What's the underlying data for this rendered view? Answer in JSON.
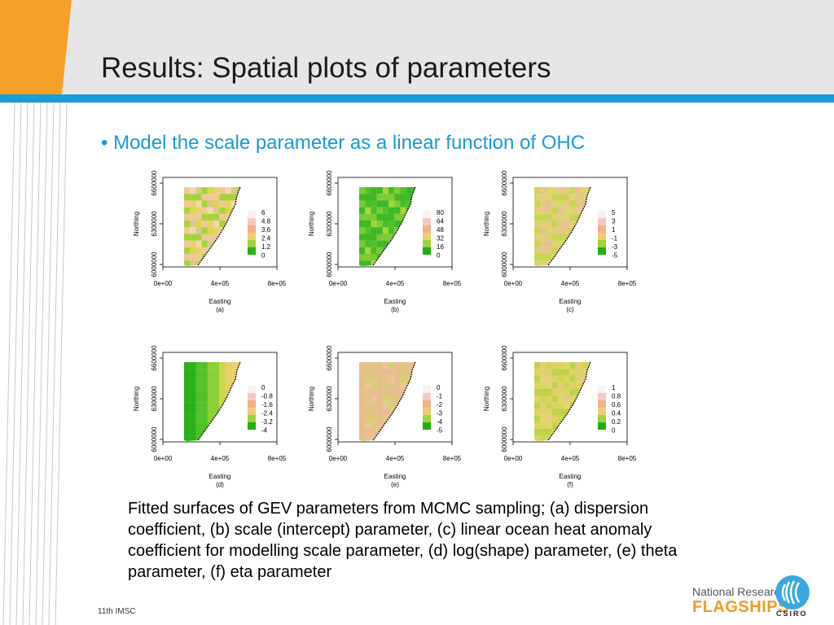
{
  "slide": {
    "title": "Results: Spatial plots of parameters",
    "bullet": "• Model the scale parameter as a linear function of OHC",
    "caption": "Fitted surfaces of GEV parameters from MCMC sampling; (a) dispersion coefficient, (b) scale (intercept) parameter, (c) linear ocean heat anomaly coefficient for modelling scale parameter, (d) log(shape) parameter, (e) theta parameter, (f) eta parameter",
    "footer_note": "11th IMSC",
    "logo": {
      "line1": "National Research",
      "line2": "FLAGSHIPS",
      "csiro": "CSIRO"
    }
  },
  "colors": {
    "accent": "#1a9ad6",
    "orange": "#f39c23",
    "header_bg": "#e6e6e6"
  },
  "chart_data": [
    {
      "type": "heatmap",
      "label": "(a)",
      "xlabel": "Easting",
      "ylabel": "Northing",
      "x_ticks": [
        "0e+00",
        "4e+05",
        "8e+05"
      ],
      "y_ticks": [
        "6000000",
        "6300000",
        "6600000"
      ],
      "legend": [
        "6",
        "4.8",
        "3.6",
        "2.4",
        "1.2",
        "0"
      ],
      "dominant": "mixed"
    },
    {
      "type": "heatmap",
      "label": "(b)",
      "xlabel": "Easting",
      "ylabel": "Northing",
      "x_ticks": [
        "0e+00",
        "4e+05",
        "8e+05"
      ],
      "y_ticks": [
        "6000000",
        "6300000",
        "6600000"
      ],
      "legend": [
        "80",
        "64",
        "48",
        "32",
        "16",
        "0"
      ],
      "dominant": "green"
    },
    {
      "type": "heatmap",
      "label": "(c)",
      "xlabel": "Easting",
      "ylabel": "Northing",
      "x_ticks": [
        "0e+00",
        "4e+05",
        "8e+05"
      ],
      "y_ticks": [
        "6000000",
        "6300000",
        "6600000"
      ],
      "legend": [
        "5",
        "3",
        "1",
        "-1",
        "-3",
        "-5"
      ],
      "dominant": "tan-yellow"
    },
    {
      "type": "heatmap",
      "label": "(d)",
      "xlabel": "Easting",
      "ylabel": "Northing",
      "x_ticks": [
        "0e+00",
        "4e+05",
        "8e+05"
      ],
      "y_ticks": [
        "6000000",
        "6300000",
        "6600000"
      ],
      "legend": [
        "0",
        "-0.8",
        "-1.6",
        "-2.4",
        "-3.2",
        "-4"
      ],
      "dominant": "green-gradient"
    },
    {
      "type": "heatmap",
      "label": "(e)",
      "xlabel": "Easting",
      "ylabel": "Northing",
      "x_ticks": [
        "0e+00",
        "4e+05",
        "8e+05"
      ],
      "y_ticks": [
        "6000000",
        "6300000",
        "6600000"
      ],
      "legend": [
        "0",
        "-1",
        "-2",
        "-3",
        "-4",
        "-5"
      ],
      "dominant": "tan"
    },
    {
      "type": "heatmap",
      "label": "(f)",
      "xlabel": "Easting",
      "ylabel": "Northing",
      "x_ticks": [
        "0e+00",
        "4e+05",
        "8e+05"
      ],
      "y_ticks": [
        "6000000",
        "6300000",
        "6600000"
      ],
      "legend": [
        "1",
        "0.8",
        "0.6",
        "0.4",
        "0.2",
        "0"
      ],
      "dominant": "yellow"
    }
  ]
}
